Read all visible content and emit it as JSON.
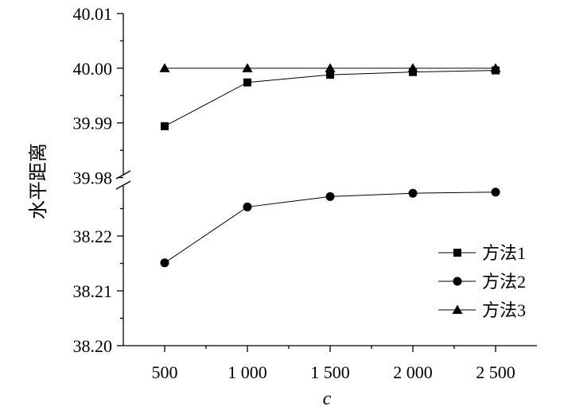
{
  "chart_data": {
    "type": "line",
    "xlabel": "c",
    "ylabel": "水平距离",
    "x": [
      500,
      1000,
      1500,
      2000,
      2500
    ],
    "x_tick_labels": [
      "500",
      "1 000",
      "1 500",
      "2 000",
      "2 500"
    ],
    "y_axis_break": true,
    "y_upper_segment": {
      "ylim": [
        39.98,
        40.01
      ],
      "ticks": [
        "39.98",
        "39.99",
        "40.00",
        "40.01"
      ]
    },
    "y_lower_segment": {
      "ylim": [
        38.2,
        38.225
      ],
      "ticks": [
        "38.20",
        "38.21",
        "38.22"
      ]
    },
    "legend_position": "right-middle",
    "series": [
      {
        "name": "方法1",
        "marker": "square",
        "values": [
          39.9894,
          39.9974,
          39.9988,
          39.9993,
          39.9996
        ]
      },
      {
        "name": "方法2",
        "marker": "circle",
        "values": [
          38.2151,
          38.2253,
          38.2272,
          38.2278,
          38.228
        ]
      },
      {
        "name": "方法3",
        "marker": "triangle",
        "values": [
          40.0,
          40.0,
          40.0,
          40.0,
          40.0
        ]
      }
    ]
  }
}
